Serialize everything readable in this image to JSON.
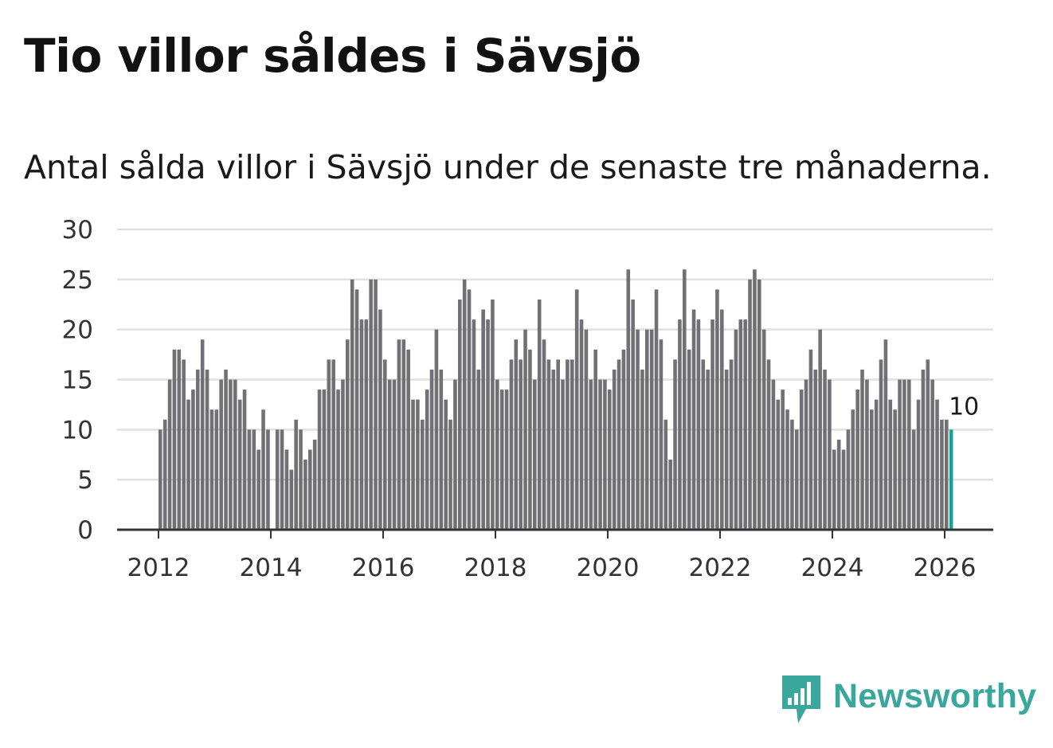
{
  "header": {
    "title": "Tio villor såldes i Sävsjö",
    "subtitle": "Antal sålda villor i Sävsjö under de senaste tre månaderna."
  },
  "brand": {
    "name": "Newsworthy",
    "color": "#3aa79c"
  },
  "colors": {
    "bar": "#707075",
    "highlight": "#18a197",
    "grid": "#e0e0e0",
    "axis": "#333333"
  },
  "chart_data": {
    "type": "bar",
    "title": "Tio villor såldes i Sävsjö",
    "xlabel": "",
    "ylabel": "",
    "ylim": [
      0,
      30
    ],
    "yticks": [
      "0",
      "5",
      "10",
      "15",
      "20",
      "25",
      "30"
    ],
    "xticks": [
      "2012",
      "2014",
      "2016",
      "2018",
      "2020",
      "2022",
      "2024",
      "2026"
    ],
    "x_start": "2012-01",
    "highlight_label": "10",
    "values": [
      10,
      11,
      15,
      18,
      18,
      17,
      13,
      14,
      16,
      19,
      16,
      12,
      12,
      15,
      16,
      15,
      15,
      13,
      14,
      10,
      10,
      8,
      12,
      10,
      0,
      10,
      10,
      8,
      6,
      11,
      10,
      7,
      8,
      9,
      14,
      14,
      17,
      17,
      14,
      15,
      19,
      25,
      24,
      21,
      21,
      25,
      25,
      22,
      17,
      15,
      15,
      19,
      19,
      18,
      13,
      13,
      11,
      14,
      16,
      20,
      16,
      13,
      11,
      15,
      23,
      25,
      24,
      21,
      16,
      22,
      21,
      23,
      15,
      14,
      14,
      17,
      19,
      17,
      20,
      18,
      15,
      23,
      19,
      17,
      16,
      17,
      15,
      17,
      17,
      24,
      21,
      20,
      15,
      18,
      15,
      15,
      14,
      16,
      17,
      18,
      26,
      23,
      20,
      16,
      20,
      20,
      24,
      19,
      11,
      7,
      17,
      21,
      26,
      18,
      22,
      21,
      17,
      16,
      21,
      24,
      22,
      16,
      17,
      20,
      21,
      21,
      25,
      26,
      25,
      20,
      17,
      15,
      13,
      14,
      12,
      11,
      10,
      14,
      15,
      18,
      16,
      20,
      16,
      15,
      8,
      9,
      8,
      10,
      12,
      14,
      16,
      15,
      12,
      13,
      17,
      19,
      13,
      12,
      15,
      15,
      15,
      10,
      13,
      16,
      17,
      15,
      13,
      11,
      11,
      10
    ]
  }
}
